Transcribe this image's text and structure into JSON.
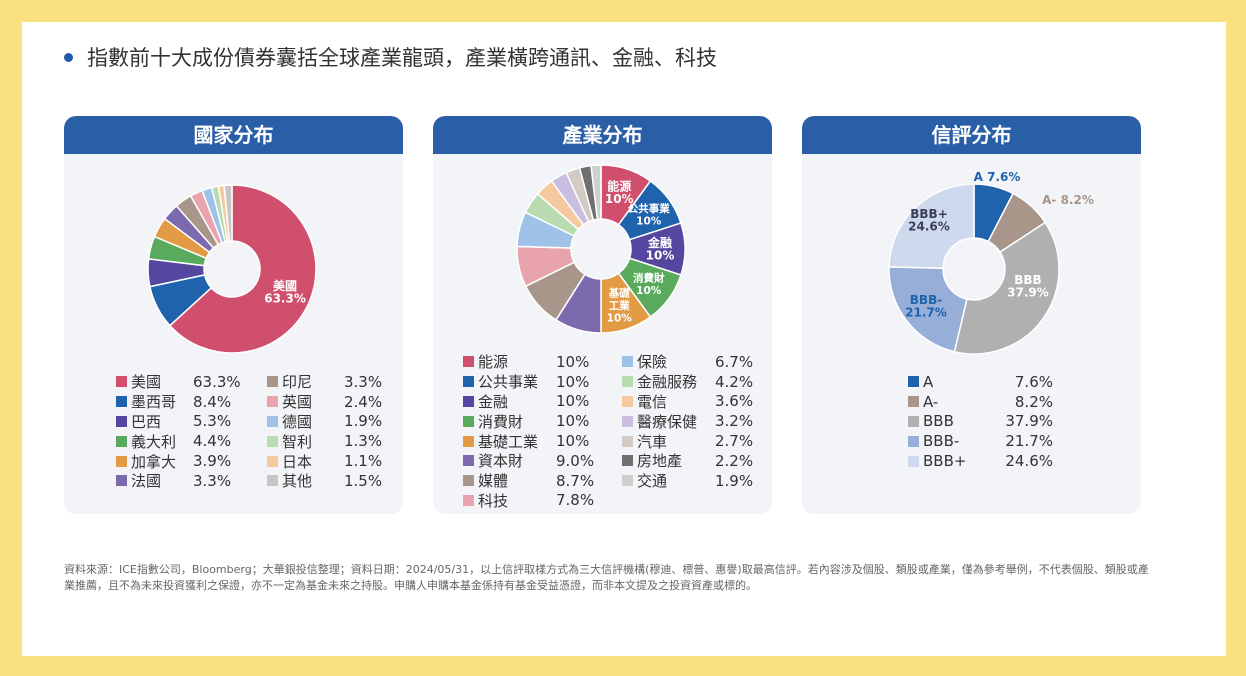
{
  "headline": "指數前十大成份債券囊括全球產業龍頭，產業橫跨通訊、金融、科技",
  "footer": "資料來源：ICE指數公司，Bloomberg；大華銀投信整理；資料日期：2024/05/31，以上信評取樣方式為三大信評機構(穆迪、標普、惠譽)取最高信評。若內容涉及個股、類股或產業，僅為參考舉例，不代表個股、類股或產業推薦，且不為未來投資獲利之保證，亦不一定為基金未來之持股。申購人申購本基金係持有基金受益憑證，而非本文提及之投資資產或標的。",
  "chart_data": [
    {
      "type": "pie",
      "title": "國家分布",
      "categories": [
        "美國",
        "墨西哥",
        "巴西",
        "義大利",
        "加拿大",
        "法國",
        "印尼",
        "英國",
        "德國",
        "智利",
        "日本",
        "其他"
      ],
      "values": [
        63.3,
        8.4,
        5.3,
        4.4,
        3.9,
        3.3,
        3.3,
        2.4,
        1.9,
        1.3,
        1.1,
        1.5
      ],
      "value_labels": [
        "63.3%",
        "8.4%",
        "5.3%",
        "4.4%",
        "3.9%",
        "3.3%",
        "3.3%",
        "2.4%",
        "1.9%",
        "1.3%",
        "1.1%",
        "1.5%"
      ],
      "colors": [
        "#cf4f6c",
        "#1f63ad",
        "#5546a0",
        "#5aaa5e",
        "#e39a45",
        "#7c6aaf",
        "#a9968a",
        "#e8a3ad",
        "#9fc3e8",
        "#b8dcb0",
        "#f5c9a0",
        "#c9c5c4"
      ],
      "slice_labels": [
        {
          "name": "美國",
          "value": "63.3%"
        }
      ],
      "legend_columns": [
        6,
        6
      ]
    },
    {
      "type": "pie",
      "title": "產業分布",
      "categories": [
        "能源",
        "公共事業",
        "金融",
        "消費財",
        "基礎工業",
        "資本財",
        "媒體",
        "科技",
        "保險",
        "金融服務",
        "電信",
        "醫療保健",
        "汽車",
        "房地產",
        "交通"
      ],
      "values": [
        10,
        10,
        10,
        10,
        10,
        9.0,
        8.7,
        7.8,
        6.7,
        4.2,
        3.6,
        3.2,
        2.7,
        2.2,
        1.9
      ],
      "value_labels": [
        "10%",
        "10%",
        "10%",
        "10%",
        "10%",
        "9.0%",
        "8.7%",
        "7.8%",
        "6.7%",
        "4.2%",
        "3.6%",
        "3.2%",
        "2.7%",
        "2.2%",
        "1.9%"
      ],
      "colors": [
        "#cf4f6c",
        "#1f63ad",
        "#5546a0",
        "#5aaa5e",
        "#e39a45",
        "#7c6aaf",
        "#a9968a",
        "#e8a3ad",
        "#9fc3e8",
        "#b8dcb0",
        "#f5c9a0",
        "#c9bde0",
        "#d2cac4",
        "#6f6f6f",
        "#cfcfcf"
      ],
      "slice_labels": [
        {
          "name": "能源",
          "value": "10%"
        },
        {
          "name": "公共事業",
          "value": "10%"
        },
        {
          "name": "金融",
          "value": "10%"
        },
        {
          "name": "消費財",
          "value": "10%"
        },
        {
          "name": "基礎工業",
          "value": "10%"
        }
      ],
      "legend_columns": [
        8,
        7
      ]
    },
    {
      "type": "pie",
      "title": "信評分布",
      "categories": [
        "A",
        "A-",
        "BBB",
        "BBB-",
        "BBB+"
      ],
      "values": [
        7.6,
        8.2,
        37.9,
        21.7,
        24.6
      ],
      "value_labels": [
        "7.6%",
        "8.2%",
        "37.9%",
        "21.7%",
        "24.6%"
      ],
      "colors": [
        "#1f63ad",
        "#a9968a",
        "#b0b0b0",
        "#97aed8",
        "#cfd9ee"
      ],
      "slice_labels": [
        {
          "name": "A",
          "value": "7.6%"
        },
        {
          "name": "A-",
          "value": "8.2%"
        },
        {
          "name": "BBB",
          "value": "37.9%"
        },
        {
          "name": "BBB-",
          "value": "21.7%"
        },
        {
          "name": "BBB+",
          "value": "24.6%"
        }
      ],
      "legend_columns": [
        5
      ]
    }
  ]
}
